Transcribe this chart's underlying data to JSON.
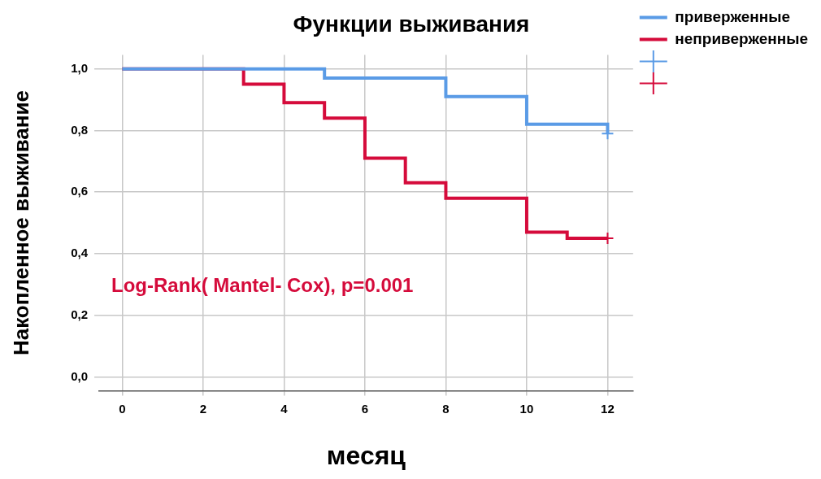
{
  "chart_data": {
    "type": "step",
    "title": "Функции выживания",
    "xlabel": "месяц",
    "ylabel": "Накопленное выживание",
    "annotations": [
      "Log-Rank( Mantel- Cox), p=0.001"
    ],
    "series": [
      {
        "name": "приверженные",
        "color": "#5a9be6",
        "x": [
          0,
          5,
          8,
          10,
          12
        ],
        "values": [
          1,
          0.97,
          0.91,
          0.82,
          0.79
        ]
      },
      {
        "name": "неприверженные",
        "color": "#d50b3b",
        "x": [
          0,
          3,
          4,
          5,
          6,
          7,
          8,
          10,
          11,
          12
        ],
        "values": [
          1,
          0.95,
          0.89,
          0.84,
          0.71,
          0.63,
          0.58,
          0.47,
          0.45,
          0.45
        ]
      },
      {
        "type": "scatter",
        "marker": "cross",
        "color": "#5a9be6",
        "x": [
          12
        ],
        "values": [
          0.79
        ]
      },
      {
        "type": "scatter",
        "marker": "cross",
        "color": "#d50b3b",
        "x": [
          12
        ],
        "values": [
          0.45
        ]
      }
    ],
    "xlim": [
      -0.57,
      12.63
    ],
    "xticks": [
      0,
      2,
      4,
      6,
      8,
      10,
      12
    ],
    "ylim": [
      -0.045,
      1.045
    ],
    "yticks": [
      {
        "value": 0,
        "label": "0,0"
      },
      {
        "value": 0.2,
        "label": "0,2"
      },
      {
        "value": 0.4,
        "label": "0,4"
      },
      {
        "value": 0.6,
        "label": "0,6"
      },
      {
        "value": 0.8,
        "label": "0,8"
      },
      {
        "value": 1,
        "label": "1,0"
      }
    ],
    "grid": true,
    "legend": "right"
  }
}
